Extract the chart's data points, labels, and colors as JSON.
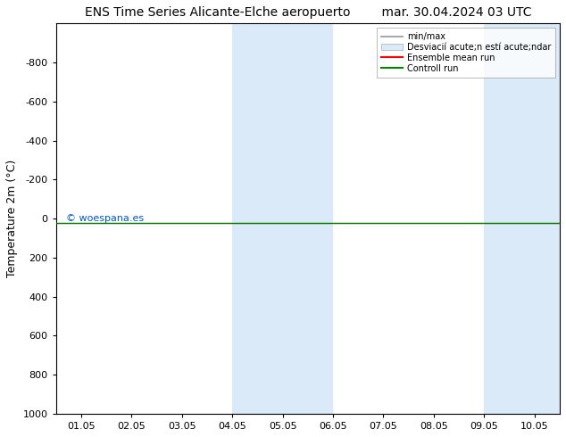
{
  "title_left": "ENS Time Series Alicante-Elche aeropuerto",
  "title_right": "mar. 30.04.2024 03 UTC",
  "ylabel": "Temperature 2m (°C)",
  "ylim": [
    -1000,
    1000
  ],
  "yticks": [
    -800,
    -600,
    -400,
    -200,
    0,
    200,
    400,
    600,
    800,
    1000
  ],
  "xlabels": [
    "01.05",
    "02.05",
    "03.05",
    "04.05",
    "05.05",
    "06.05",
    "07.05",
    "08.05",
    "09.05",
    "10.05"
  ],
  "xtick_positions": [
    0,
    1,
    2,
    3,
    4,
    5,
    6,
    7,
    8,
    9
  ],
  "xmin": -0.5,
  "xmax": 9.5,
  "shaded_regions": [
    {
      "xstart": 3.0,
      "xend": 5.0,
      "color": "#daeaf8"
    },
    {
      "xstart": 8.0,
      "xend": 9.5,
      "color": "#daeaf8"
    }
  ],
  "green_line_y": 20,
  "red_line_y": 20,
  "background_color": "#ffffff",
  "plot_bg_color": "#ffffff",
  "watermark": "© woespana.es",
  "watermark_color": "#0055cc",
  "legend_min_max_color": "#aaaaaa",
  "legend_std_color": "#daeaf8",
  "legend_mean_color": "#ff0000",
  "legend_ctrl_color": "#008000",
  "title_fontsize": 10,
  "axis_fontsize": 9,
  "tick_fontsize": 8
}
